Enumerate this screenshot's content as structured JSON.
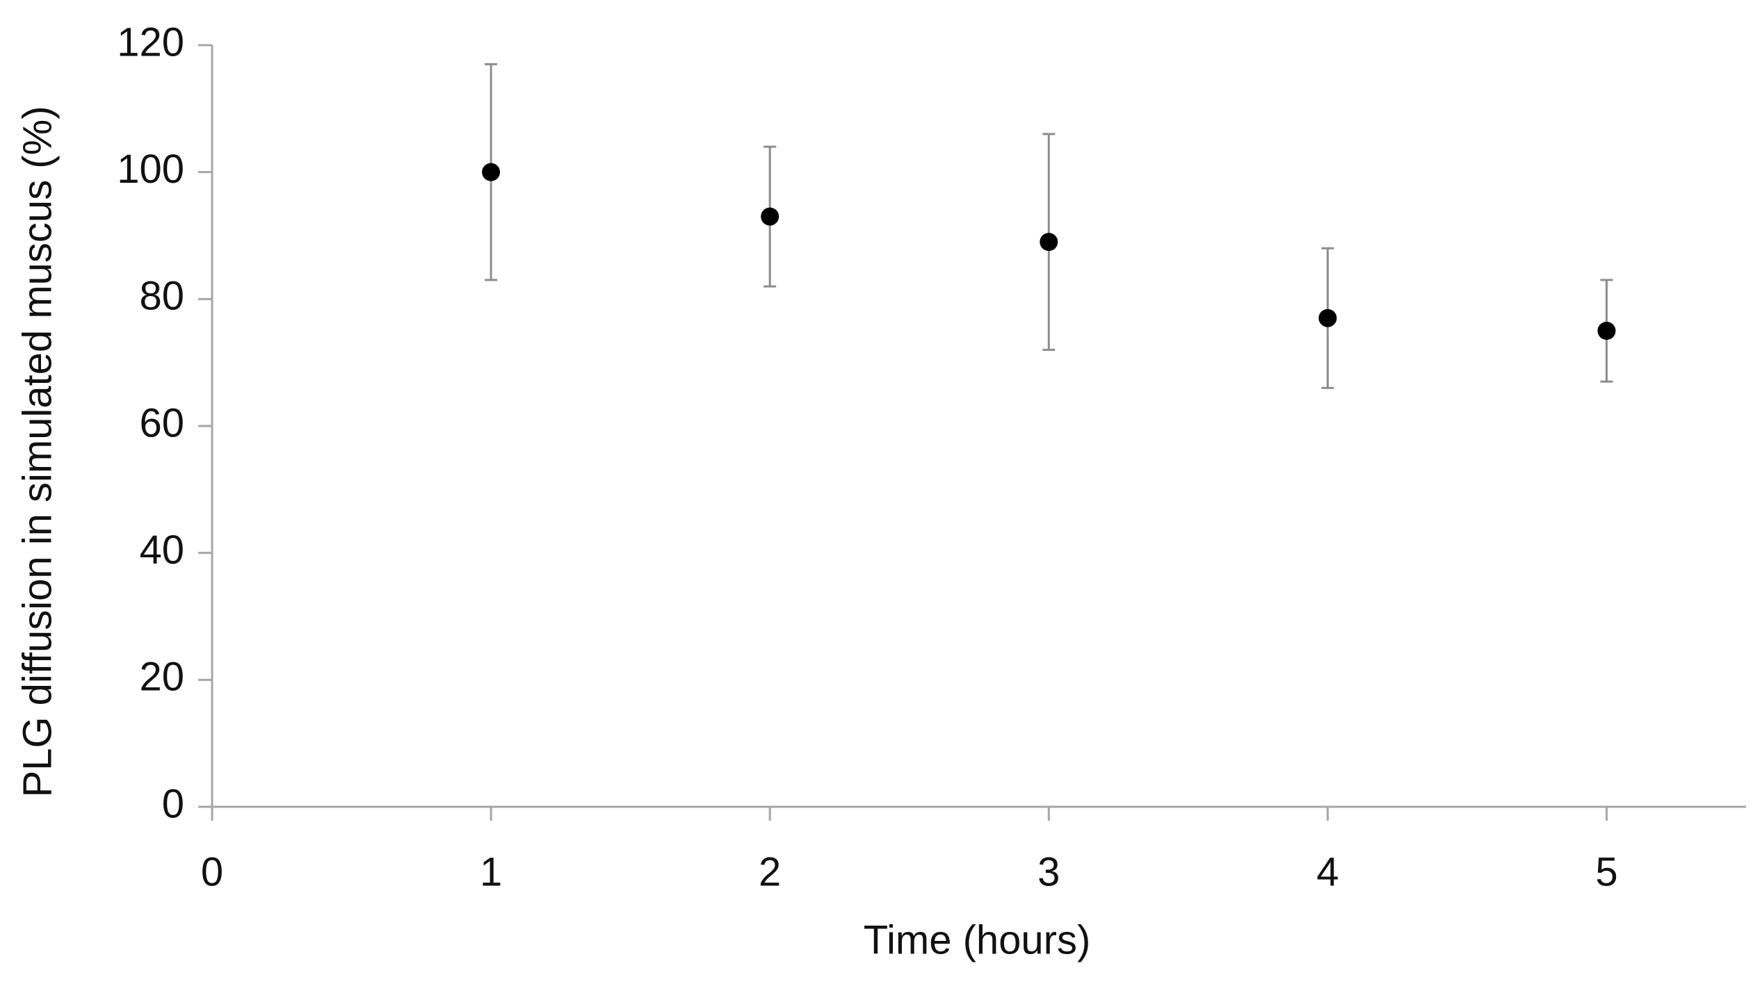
{
  "chart_data": {
    "type": "scatter",
    "x_label": "Time (hours)",
    "y_label": "PLG diffusion in simulated muscus (%)",
    "x": [
      1,
      2,
      3,
      4,
      5
    ],
    "values": [
      100,
      93,
      89,
      77,
      75
    ],
    "errors": [
      17,
      11,
      17,
      11,
      8
    ],
    "color": "#000000",
    "error_color": "#8c8c8c",
    "axis_color": "#a6a6a6",
    "xlim": [
      0,
      5.5
    ],
    "xticks": [
      0,
      1,
      2,
      3,
      4,
      5
    ],
    "ylim": [
      0,
      120
    ],
    "yticks": [
      0,
      20,
      40,
      60,
      80,
      100,
      120
    ],
    "grid": false
  }
}
